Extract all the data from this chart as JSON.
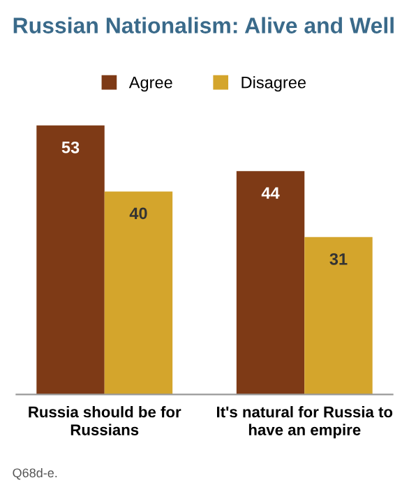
{
  "chart_data": {
    "type": "bar",
    "title": "Russian Nationalism: Alive and Well",
    "categories": [
      "Russia should be for Russians",
      "It's natural for Russia to have an empire"
    ],
    "series": [
      {
        "name": "Agree",
        "color": "#7e3a16",
        "values": [
          53,
          44
        ]
      },
      {
        "name": "Disagree",
        "color": "#d4a52c",
        "values": [
          40,
          31
        ]
      }
    ],
    "data_labels": true,
    "legend": "top",
    "grid": false,
    "annotations": [
      "Q68d-e."
    ]
  }
}
